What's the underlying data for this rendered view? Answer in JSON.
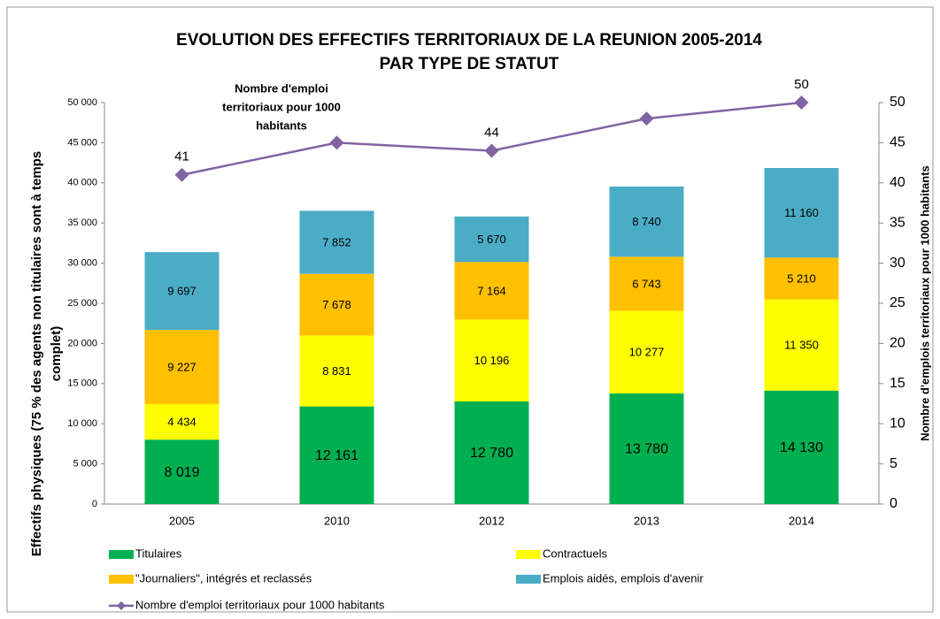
{
  "chart_data": {
    "type": "stacked_bar_line",
    "title": [
      "EVOLUTION DES EFFECTIFS TERRITORIAUX DE LA REUNION 2005-2014",
      "PAR TYPE DE STATUT"
    ],
    "ylabel": [
      "Effectifs physiques (75 % des agents non titulaires  sont à temps",
      "complet)"
    ],
    "y2label": "Nombre d'emplois  territoriaux pour 1000 habitants",
    "annotation": [
      "Nombre d'emploi",
      "territoriaux pour 1000",
      "habitants"
    ],
    "categories": [
      "2005",
      "2010",
      "2012",
      "2013",
      "2014"
    ],
    "series": [
      {
        "name": "Titulaires",
        "color": "#00b050",
        "values": [
          8019,
          12161,
          12780,
          13780,
          14130
        ],
        "value_labels": [
          "8 019",
          "12 161",
          "12 780",
          "13 780",
          "14 130"
        ]
      },
      {
        "name": "Contractuels",
        "color": "#ffff00",
        "values": [
          4434,
          8831,
          10196,
          10277,
          11350
        ],
        "value_labels": [
          "4 434",
          "8 831",
          "10 196",
          "10 277",
          "11 350"
        ]
      },
      {
        "name": "\"Journaliers\", intégrés et reclassés",
        "color": "#ffc000",
        "values": [
          9227,
          7678,
          7164,
          6743,
          5210
        ],
        "value_labels": [
          "9 227",
          "7 678",
          "7 164",
          "6 743",
          "5 210"
        ]
      },
      {
        "name": "Emplois aidés, emplois d'avenir",
        "color": "#4bacc6",
        "values": [
          9697,
          7852,
          5670,
          8740,
          11160
        ],
        "value_labels": [
          "9 697",
          "7 852",
          "5 670",
          "8 740",
          "11 160"
        ]
      },
      {
        "name": "Nombre d'emploi territoriaux pour 1000 habitants",
        "color": "#8064a2",
        "axis": "y2",
        "values": [
          41,
          45,
          44,
          48,
          50
        ],
        "value_labels": [
          "41",
          null,
          "44",
          null,
          "50"
        ]
      }
    ],
    "ylim": [
      0,
      50000
    ],
    "yticks": [
      0,
      {
        "value": 5000,
        "label": "5 000"
      },
      {
        "value": 10000,
        "label": "10 000"
      },
      {
        "value": 15000,
        "label": "15 000"
      },
      {
        "value": 20000,
        "label": "20 000"
      },
      {
        "value": 25000,
        "label": "25 000"
      },
      {
        "value": 30000,
        "label": "30 000"
      },
      {
        "value": 35000,
        "label": "35 000"
      },
      {
        "value": 40000,
        "label": "40 000"
      },
      {
        "value": 45000,
        "label": "45 000"
      },
      {
        "value": 50000,
        "label": "50 000"
      }
    ],
    "y2lim": [
      0,
      50
    ],
    "y2ticks": [
      0,
      5,
      10,
      15,
      20,
      25,
      30,
      35,
      40,
      45,
      50
    ]
  }
}
